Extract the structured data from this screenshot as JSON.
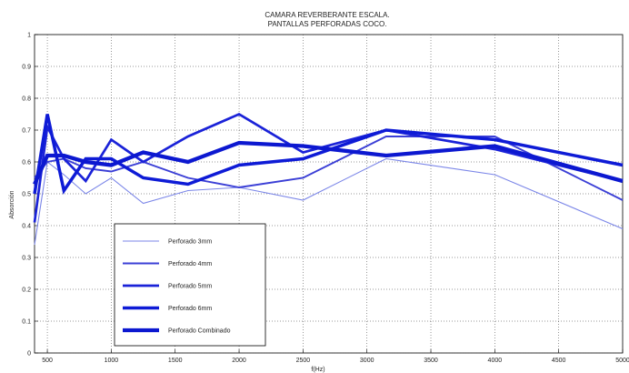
{
  "chart_data": {
    "type": "line",
    "title": "CAMARA REVERBERANTE ESCALA.",
    "subtitle": "PANTALLAS PERFORADAS COCO.",
    "xlabel": "f(Hz)",
    "ylabel": "Absorción",
    "xlim": [
      400,
      5000
    ],
    "ylim": [
      0,
      1
    ],
    "xticks": [
      500,
      1000,
      1500,
      2000,
      2500,
      3000,
      3500,
      4000,
      4500,
      5000
    ],
    "yticks": [
      0,
      0.1,
      0.2,
      0.3,
      0.4,
      0.5,
      0.6,
      0.7,
      0.8,
      0.9,
      1
    ],
    "grid": true,
    "legend_position": "lower-left",
    "series": [
      {
        "name": "Perforado 3mm",
        "color": "#7b86e8",
        "weight": 1,
        "x": [
          400,
          500,
          630,
          800,
          1000,
          1250,
          1600,
          2000,
          2500,
          3150,
          4000,
          5000
        ],
        "y": [
          0.34,
          0.6,
          0.56,
          0.5,
          0.55,
          0.47,
          0.51,
          0.52,
          0.48,
          0.61,
          0.56,
          0.39
        ]
      },
      {
        "name": "Perforado 4mm",
        "color": "#3b3fd6",
        "weight": 2,
        "x": [
          400,
          500,
          630,
          800,
          1000,
          1250,
          1600,
          2000,
          2500,
          3150,
          4000,
          5000
        ],
        "y": [
          0.55,
          0.6,
          0.61,
          0.58,
          0.57,
          0.6,
          0.55,
          0.52,
          0.55,
          0.68,
          0.68,
          0.48
        ]
      },
      {
        "name": "Perforado 5mm",
        "color": "#1a22d8",
        "weight": 3,
        "x": [
          400,
          500,
          630,
          800,
          1000,
          1250,
          1600,
          2000,
          2500,
          3150,
          4000,
          5000
        ],
        "y": [
          0.41,
          0.71,
          0.61,
          0.54,
          0.67,
          0.6,
          0.68,
          0.75,
          0.63,
          0.7,
          0.64,
          0.54
        ]
      },
      {
        "name": "Perforado 6mm",
        "color": "#0e1bd6",
        "weight": 4,
        "x": [
          400,
          500,
          630,
          800,
          1000,
          1250,
          1600,
          2000,
          2500,
          3150,
          4000,
          5000
        ],
        "y": [
          0.5,
          0.75,
          0.51,
          0.61,
          0.61,
          0.55,
          0.53,
          0.59,
          0.61,
          0.7,
          0.67,
          0.59
        ]
      },
      {
        "name": "Perforado Combinado",
        "color": "#0c18d0",
        "weight": 5,
        "x": [
          400,
          500,
          630,
          800,
          1000,
          1250,
          1600,
          2000,
          2500,
          3150,
          4000,
          5000
        ],
        "y": [
          0.53,
          0.62,
          0.62,
          0.6,
          0.59,
          0.63,
          0.6,
          0.66,
          0.65,
          0.62,
          0.65,
          0.54
        ]
      }
    ]
  }
}
